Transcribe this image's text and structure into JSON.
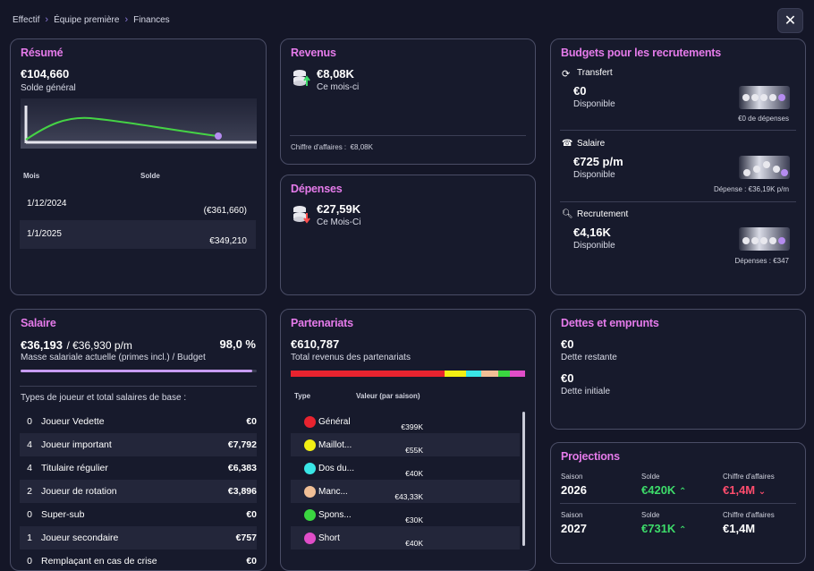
{
  "breadcrumb": [
    "Effectif",
    "Équipe première",
    "Finances"
  ],
  "close_icon": "close-icon",
  "resume": {
    "title": "Résumé",
    "balance": "€104,660",
    "balance_label": "Solde général",
    "col_month": "Mois",
    "col_balance": "Solde",
    "rows": [
      {
        "month": "1/12/2024",
        "balance": "(€361,660)"
      },
      {
        "month": "1/1/2025",
        "balance": "€349,210"
      }
    ]
  },
  "revenus": {
    "title": "Revenus",
    "value": "€8,08K",
    "label": "Ce mois-ci",
    "footer_label": "Chiffre d'affaires :",
    "footer_value": "€8,08K"
  },
  "depenses": {
    "title": "Dépenses",
    "value": "€27,59K",
    "label": "Ce Mois-Ci"
  },
  "budgets": {
    "title": "Budgets pour les recrutements",
    "items": [
      {
        "name": "Transfert",
        "icon": "refresh-icon",
        "value": "€0",
        "label": "Disponible",
        "note": "€0 de dépenses"
      },
      {
        "name": "Salaire",
        "icon": "cash-register-icon",
        "value": "€725 p/m",
        "label": "Disponible",
        "note": "Dépense : €36,19K p/m"
      },
      {
        "name": "Recrutement",
        "icon": "magnifier-icon",
        "value": "€4,16K",
        "label": "Disponible",
        "note": "Dépenses : €347"
      }
    ]
  },
  "salaire": {
    "title": "Salaire",
    "current": "€36,193",
    "budget": "/ €36,930 p/m",
    "percent": "98,0 %",
    "percent_fraction": 0.98,
    "label": "Masse salariale actuelle (primes incl.) / Budget",
    "types_title": "Types de joueur et total salaires de base :",
    "rows": [
      {
        "count": "0",
        "type": "Joueur Vedette",
        "total": "€0"
      },
      {
        "count": "4",
        "type": "Joueur important",
        "total": "€7,792"
      },
      {
        "count": "4",
        "type": "Titulaire régulier",
        "total": "€6,383"
      },
      {
        "count": "2",
        "type": "Joueur de rotation",
        "total": "€3,896"
      },
      {
        "count": "0",
        "type": "Super-sub",
        "total": "€0"
      },
      {
        "count": "1",
        "type": "Joueur secondaire",
        "total": "€757"
      },
      {
        "count": "0",
        "type": "Remplaçant en cas de crise",
        "total": "€0"
      }
    ]
  },
  "partenariats": {
    "title": "Partenariats",
    "total": "€610,787",
    "total_label": "Total revenus des partenariats",
    "col_type": "Type",
    "col_value": "Valeur (par saison)",
    "bar_colors": [
      "#e8232f",
      "#f2ef13",
      "#39e6e6",
      "#f0bf96",
      "#3ad640",
      "#e04dc8"
    ],
    "bar_fractions": [
      0.653,
      0.09,
      0.065,
      0.071,
      0.049,
      0.065
    ],
    "rows": [
      {
        "name": "Général",
        "value": "€399K",
        "color": "#e8232f"
      },
      {
        "name": "Maillot...",
        "value": "€55K",
        "color": "#f2ef13"
      },
      {
        "name": "Dos du...",
        "value": "€40K",
        "color": "#39e6e6"
      },
      {
        "name": "Manc...",
        "value": "€43,33K",
        "color": "#f0bf96"
      },
      {
        "name": "Spons...",
        "value": "€30K",
        "color": "#3ad640"
      },
      {
        "name": "Short",
        "value": "€40K",
        "color": "#e04dc8"
      }
    ]
  },
  "dettes": {
    "title": "Dettes et emprunts",
    "remaining": "€0",
    "remaining_label": "Dette restante",
    "initial": "€0",
    "initial_label": "Dette initiale"
  },
  "projections": {
    "title": "Projections",
    "season_label": "Saison",
    "balance_label": "Solde",
    "revenue_label": "Chiffre d'affaires",
    "rows": [
      {
        "season": "2026",
        "balance": "€420K",
        "balance_trend": "up",
        "revenue": "€1,4M",
        "revenue_trend": "down"
      },
      {
        "season": "2027",
        "balance": "€731K",
        "balance_trend": "up",
        "revenue": "€1,4M",
        "revenue_trend": "none"
      }
    ]
  }
}
